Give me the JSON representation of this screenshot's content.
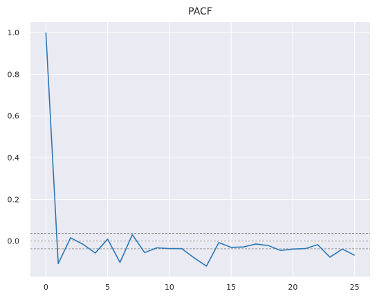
{
  "chart_data": {
    "type": "line",
    "title": "PACF",
    "xlabel": "",
    "ylabel": "",
    "x": [
      0,
      1,
      2,
      3,
      4,
      5,
      6,
      7,
      8,
      9,
      10,
      11,
      12,
      13,
      14,
      15,
      16,
      17,
      18,
      19,
      20,
      21,
      22,
      23,
      24,
      25
    ],
    "series": [
      {
        "values": [
          1.0,
          -0.108,
          0.016,
          -0.015,
          -0.057,
          0.01,
          -0.102,
          0.031,
          -0.055,
          -0.032,
          -0.036,
          -0.036,
          -0.08,
          -0.12,
          -0.007,
          -0.03,
          -0.028,
          -0.014,
          -0.021,
          -0.045,
          -0.038,
          -0.036,
          -0.017,
          -0.077,
          -0.038,
          -0.068
        ]
      }
    ],
    "xlim": [
      -1.25,
      26.25
    ],
    "ylim": [
      -0.17,
      1.05
    ],
    "xticks": [
      0,
      5,
      10,
      15,
      20,
      25
    ],
    "yticks": [
      0.0,
      0.2,
      0.4,
      0.6,
      0.8,
      1.0
    ],
    "xtick_labels": [
      "0",
      "5",
      "10",
      "15",
      "20",
      "25"
    ],
    "ytick_labels": [
      "0.0",
      "0.2",
      "0.4",
      "0.6",
      "0.8",
      "1.0"
    ],
    "reference_lines": [
      0.037,
      0.0,
      -0.037
    ],
    "grid": true,
    "colors": {
      "line": "#2a77b4",
      "plot_background": "#eaeaf2",
      "grid": "#ffffff",
      "reference": "#7a7a7a"
    }
  }
}
